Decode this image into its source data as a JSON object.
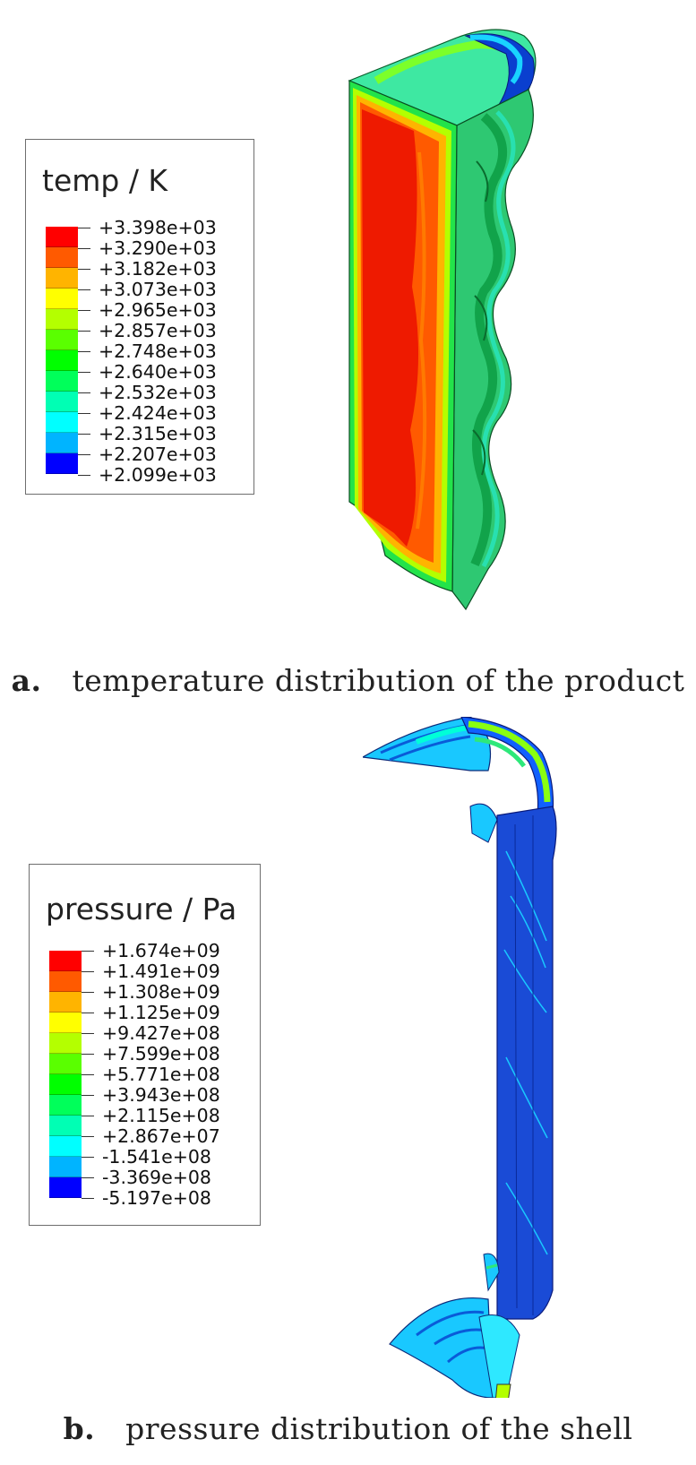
{
  "panels": [
    {
      "legend_title": "temp / K",
      "legend_values": [
        "+3.398e+03",
        "+3.290e+03",
        "+3.182e+03",
        "+3.073e+03",
        "+2.965e+03",
        "+2.857e+03",
        "+2.748e+03",
        "+2.640e+03",
        "+2.532e+03",
        "+2.424e+03",
        "+2.315e+03",
        "+2.207e+03",
        "+2.099e+03"
      ],
      "caption_letter": "a.",
      "caption_text": "temperature distribution of the product"
    },
    {
      "legend_title": "pressure / Pa",
      "legend_values": [
        "+1.674e+09",
        "+1.491e+09",
        "+1.308e+09",
        "+1.125e+09",
        "+9.427e+08",
        "+7.599e+08",
        "+5.771e+08",
        "+3.943e+08",
        "+2.115e+08",
        "+2.867e+07",
        "-1.541e+08",
        "-3.369e+08",
        "-5.197e+08"
      ],
      "caption_letter": "b.",
      "caption_text": "pressure distribution of the shell"
    }
  ],
  "colors": {
    "contour_scale": [
      "#ff0000",
      "#ff5a00",
      "#ffb400",
      "#ffff00",
      "#b4ff00",
      "#5aff00",
      "#00ff00",
      "#00ff5a",
      "#00ffb4",
      "#00ffff",
      "#00b4ff",
      "#005aff",
      "#0000ff"
    ]
  }
}
